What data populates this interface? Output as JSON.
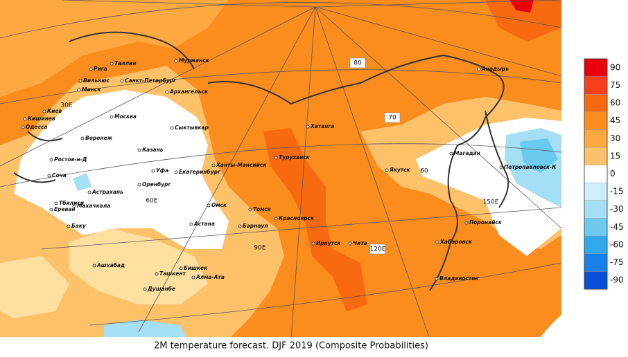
{
  "caption": "2M temperature forecast. DJF 2019 (Composite Probabilities)",
  "legend": {
    "ticks": [
      90,
      75,
      60,
      45,
      30,
      15,
      0,
      -15,
      -30,
      -45,
      -60,
      -75,
      -90
    ],
    "colors": [
      "#e8000b",
      "#f4401b",
      "#f86a10",
      "#fb8c1e",
      "#fda840",
      "#fdc16a",
      "#ffffff",
      "#cdeefb",
      "#a4dff5",
      "#6ccaf0",
      "#30a8ea",
      "#1880e6",
      "#0a4fd8"
    ]
  },
  "grid_labels": [
    "80",
    "70",
    "60",
    "30E",
    "60E",
    "90E",
    "120E",
    "150E"
  ],
  "cities": [
    "Рига",
    "Таллин",
    "Вильнюс",
    "Минск",
    "Санкт-Петербург",
    "Мурманск",
    "Архангельск",
    "Киев",
    "Кишинев",
    "Одесса",
    "Воронеж",
    "Москва",
    "Сыктывкар",
    "Казань",
    "Ростов-н-Д",
    "Уфа",
    "Екатеринбург",
    "Оренбург",
    "Ханты-Мансийск",
    "Сочи",
    "Астрахань",
    "Тбилиси",
    "Ереван",
    "Махачкала",
    "Омск",
    "Томск",
    "Астана",
    "Красноярск",
    "Барнаул",
    "Баку",
    "Туруханск",
    "Хатанга",
    "Якутск",
    "Магадан",
    "Анадырь",
    "Петропавловск-К",
    "Иркутск",
    "Чита",
    "Хабаровск",
    "Поронайск",
    "Владивосток",
    "Ашхабад",
    "Бишкек",
    "Ташкент",
    "Алма-Ата",
    "Душанбе"
  ]
}
